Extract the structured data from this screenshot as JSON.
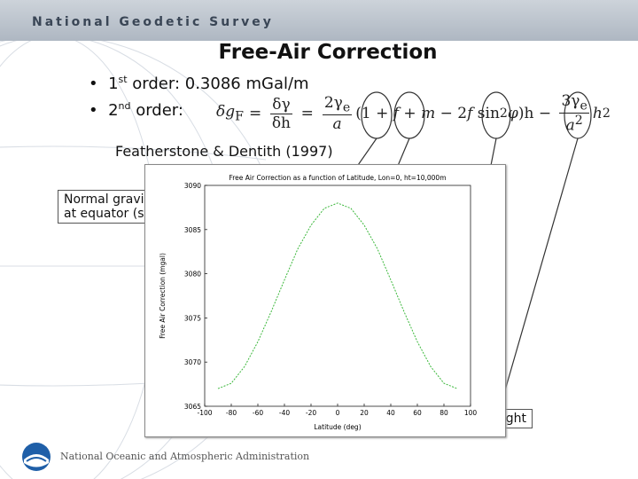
{
  "header": {
    "organization": "National Geodetic Survey"
  },
  "title": "Free-Air Correction",
  "bullets": [
    {
      "number": "1",
      "suffix": "st",
      "text": " order: 0.3086 mGal/m"
    },
    {
      "number": "2",
      "suffix": "nd",
      "text": " order:"
    }
  ],
  "formula": {
    "lhs": "δg",
    "lhs_sub": "F",
    "eq1": "=",
    "num1": "δγ",
    "den1": "δh",
    "eq2": "=",
    "num2": "2γ",
    "num2_sub": "e",
    "den2": "a",
    "open": "(1 + ",
    "f1": "f",
    "plus": " + ",
    "m": "m",
    "minus2": " − 2",
    "f2": "f",
    "sin": " sin",
    "sin_sup": "2",
    "phi": "φ",
    "close": ")h",
    "minus": " − ",
    "num3": "3γ",
    "num3_sub": "e",
    "den3": "a",
    "den3_sup": "2",
    "h": "h",
    "h_sup": "2"
  },
  "citation": "Featherstone & Dentith (1997)",
  "callouts": [
    {
      "lines": [
        "Normal gravi",
        "at equator (s"
      ]
    },
    {
      "lines": [
        "ght"
      ]
    }
  ],
  "footer": {
    "organization": "National Oceanic and Atmospheric Administration"
  },
  "chart_data": {
    "type": "line",
    "title": "Free Air Correction as a function of Latitude, Lon=0, ht=10,000m",
    "x_label": "Latitude (deg)",
    "y_label": "Free Air Correction (mgal)",
    "x": [
      -90,
      -80,
      -70,
      -60,
      -50,
      -40,
      -30,
      -20,
      -10,
      0,
      10,
      20,
      30,
      40,
      50,
      60,
      70,
      80,
      90
    ],
    "series": [
      {
        "color": "#3cb83c",
        "values": [
          3067,
          3067.6,
          3069.5,
          3072.3,
          3075.7,
          3079.3,
          3082.8,
          3085.5,
          3087.4,
          3088,
          3087.4,
          3085.5,
          3082.8,
          3079.3,
          3075.7,
          3072.3,
          3069.5,
          3067.6,
          3067
        ]
      }
    ],
    "xlim": [
      -100,
      100
    ],
    "xticks": [
      -100,
      -80,
      -60,
      -40,
      -20,
      0,
      20,
      40,
      60,
      80,
      100
    ],
    "ylim": [
      3065,
      3090
    ],
    "yticks": [
      3065,
      3070,
      3075,
      3080,
      3085,
      3090
    ]
  }
}
